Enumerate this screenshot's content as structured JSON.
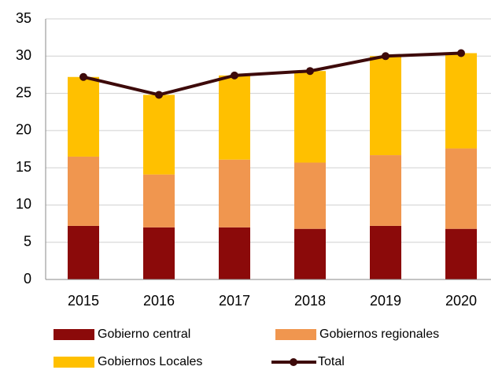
{
  "chart_data": {
    "type": "bar",
    "stacked": true,
    "categories": [
      "2015",
      "2016",
      "2017",
      "2018",
      "2019",
      "2020"
    ],
    "series": [
      {
        "name": "Gobierno central",
        "color": "#8b0a0a",
        "values": [
          7.2,
          7.0,
          7.0,
          6.8,
          7.2,
          6.8
        ]
      },
      {
        "name": "Gobiernos regionales",
        "color": "#f0964f",
        "values": [
          9.3,
          7.1,
          9.1,
          8.9,
          9.5,
          10.8
        ]
      },
      {
        "name": "Gobiernos Locales",
        "color": "#ffc000",
        "values": [
          10.7,
          10.7,
          11.3,
          12.3,
          13.3,
          12.8
        ]
      },
      {
        "name": "Total",
        "color": "#3d0a0a",
        "type": "line",
        "values": [
          27.2,
          24.8,
          27.4,
          28.0,
          30.0,
          30.4
        ]
      }
    ],
    "ylim": [
      0,
      35
    ],
    "yticks": [
      0,
      5,
      10,
      15,
      20,
      25,
      30,
      35
    ],
    "grid": true
  }
}
